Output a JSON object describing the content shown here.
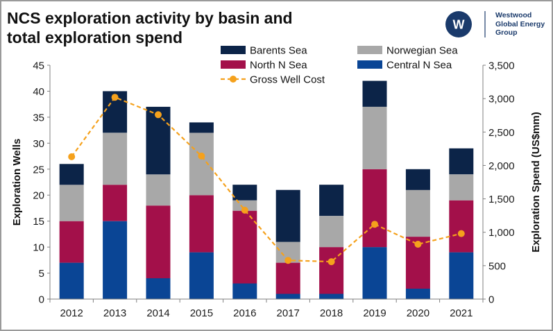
{
  "header": {
    "title": "NCS exploration activity by basin and\ntotal exploration spend",
    "logo": {
      "line1": "Westwood",
      "line2": "Global Energy",
      "line3": "Group",
      "accent": "#1a3a6b"
    }
  },
  "chart_data": {
    "type": "bar",
    "stacked": true,
    "categories": [
      "2012",
      "2013",
      "2014",
      "2015",
      "2016",
      "2017",
      "2018",
      "2019",
      "2020",
      "2021"
    ],
    "series": [
      {
        "name": "Central N Sea",
        "color": "#0a4595",
        "values": [
          7,
          15,
          4,
          9,
          3,
          1,
          1,
          10,
          2,
          9
        ]
      },
      {
        "name": "North N Sea",
        "color": "#a3104a",
        "values": [
          8,
          7,
          14,
          11,
          14,
          6,
          9,
          15,
          10,
          10
        ]
      },
      {
        "name": "Norwegian Sea",
        "color": "#a8a8a8",
        "values": [
          7,
          10,
          6,
          12,
          2,
          4,
          6,
          12,
          9,
          5
        ]
      },
      {
        "name": "Barents Sea",
        "color": "#0c2448",
        "values": [
          4,
          8,
          13,
          2,
          3,
          10,
          6,
          5,
          4,
          5
        ]
      }
    ],
    "line_series": {
      "name": "Gross Well Cost",
      "color": "#f5a11c",
      "axis": "right",
      "values": [
        2130,
        3020,
        2760,
        2140,
        1330,
        580,
        560,
        1120,
        820,
        980
      ]
    },
    "left_axis": {
      "label": "Exploration Wells",
      "min": 0,
      "max": 45,
      "ticks": [
        0,
        5,
        10,
        15,
        20,
        25,
        30,
        35,
        40,
        45
      ]
    },
    "right_axis": {
      "label": "Exploration Spend (US$mm)",
      "min": 0,
      "max": 3500,
      "ticks": [
        0,
        500,
        1000,
        1500,
        2000,
        2500,
        3000,
        3500
      ],
      "tick_labels": [
        "0",
        "500",
        "1,000",
        "1,500",
        "2,000",
        "2,500",
        "3,000",
        "3,500"
      ]
    },
    "legend": {
      "position": "top",
      "entries": [
        "Barents Sea",
        "Norwegian Sea",
        "North N Sea",
        "Central N Sea",
        "Gross Well Cost"
      ]
    },
    "grid": false
  }
}
